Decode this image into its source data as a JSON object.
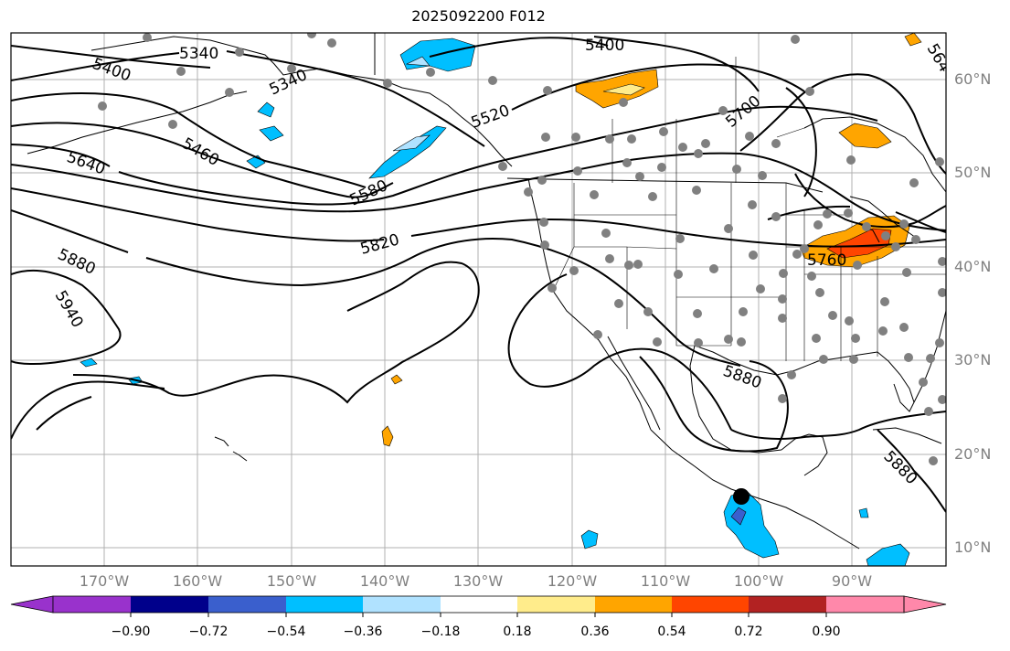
{
  "title": "2025092200 F012",
  "latitude_labels": [
    "60°N",
    "50°N",
    "40°N",
    "30°N",
    "20°N",
    "10°N"
  ],
  "longitude_labels": [
    "170°W",
    "160°W",
    "150°W",
    "140°W",
    "130°W",
    "120°W",
    "110°W",
    "100°W",
    "90°W"
  ],
  "contour_labels": [
    "5340",
    "5340",
    "5400",
    "5400",
    "5460",
    "5520",
    "5580",
    "5640",
    "5700",
    "5760",
    "5820",
    "5880",
    "5880",
    "5880",
    "5940",
    "564"
  ],
  "colorbar": {
    "tick_labels": [
      "−0.90",
      "−0.72",
      "−0.54",
      "−0.36",
      "−0.18",
      "0.18",
      "0.36",
      "0.54",
      "0.72",
      "0.90"
    ],
    "colors": [
      "#9932CC",
      "#00008B",
      "#3A5FCD",
      "#00BFFF",
      "#B0E2FF",
      "#FFFFFF",
      "#FFEC8B",
      "#FFA500",
      "#FF4500",
      "#B22222",
      "#FF88AA"
    ]
  },
  "shading_colors": {
    "neg_strong": "#3A5FCD",
    "neg_mid": "#00BFFF",
    "neg_light": "#B0E2FF",
    "pos_light": "#FFEC8B",
    "pos_mid": "#FFA500",
    "pos_strong": "#FF4500"
  },
  "station_color": "#808080",
  "marker_color": "#000000"
}
